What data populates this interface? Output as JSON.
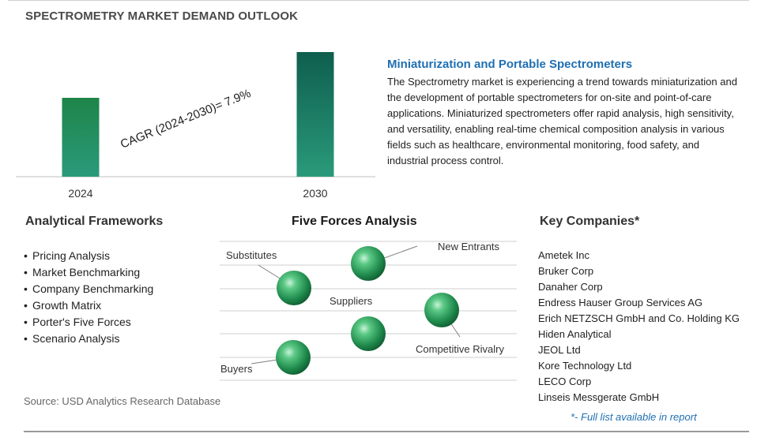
{
  "page": {
    "title": "SPECTROMETRY MARKET DEMAND OUTLOOK"
  },
  "chart_data": {
    "type": "bar",
    "categories": [
      "2024",
      "2030"
    ],
    "values": [
      1.0,
      1.58
    ],
    "title": "",
    "xlabel": "",
    "ylabel": "",
    "grid": false,
    "colors": [
      "#1e8449",
      "#0e5e4e"
    ],
    "annotation": "CAGR (2024-2030)=  7.9%"
  },
  "trend": {
    "title": "Miniaturization and Portable Spectrometers",
    "body": "The Spectrometry market is experiencing a trend towards miniaturization and the development of portable spectrometers for on-site and point-of-care applications. Miniaturized spectrometers offer rapid analysis, high sensitivity, and versatility, enabling real-time chemical composition analysis in various fields such as healthcare, environmental monitoring, food safety, and industrial process control."
  },
  "frameworks": {
    "title": "Analytical Frameworks",
    "items": [
      "Pricing Analysis",
      "Market Benchmarking",
      "Company Benchmarking",
      "Growth Matrix",
      "Porter's Five Forces",
      "Scenario Analysis"
    ]
  },
  "five_forces": {
    "title": "Five Forces Analysis",
    "forces": [
      "New Entrants",
      "Substitutes",
      "Suppliers",
      "Competitive Rivalry",
      "Buyers"
    ]
  },
  "companies": {
    "title": "Key Companies*",
    "items": [
      "Ametek Inc",
      "Bruker Corp",
      "Danaher Corp",
      "Endress Hauser Group Services AG",
      "Erich NETZSCH GmbH and Co. Holding KG",
      "Hiden Analytical",
      "JEOL Ltd",
      "Kore Technology Ltd",
      "LECO Corp",
      "Linseis Messgerate GmbH"
    ],
    "note": "*- Full list available in report"
  },
  "source": "Source: USD Analytics Research Database",
  "colors": {
    "accent_blue": "#1f6fb2",
    "sphere_green": "#2e9e5b"
  }
}
